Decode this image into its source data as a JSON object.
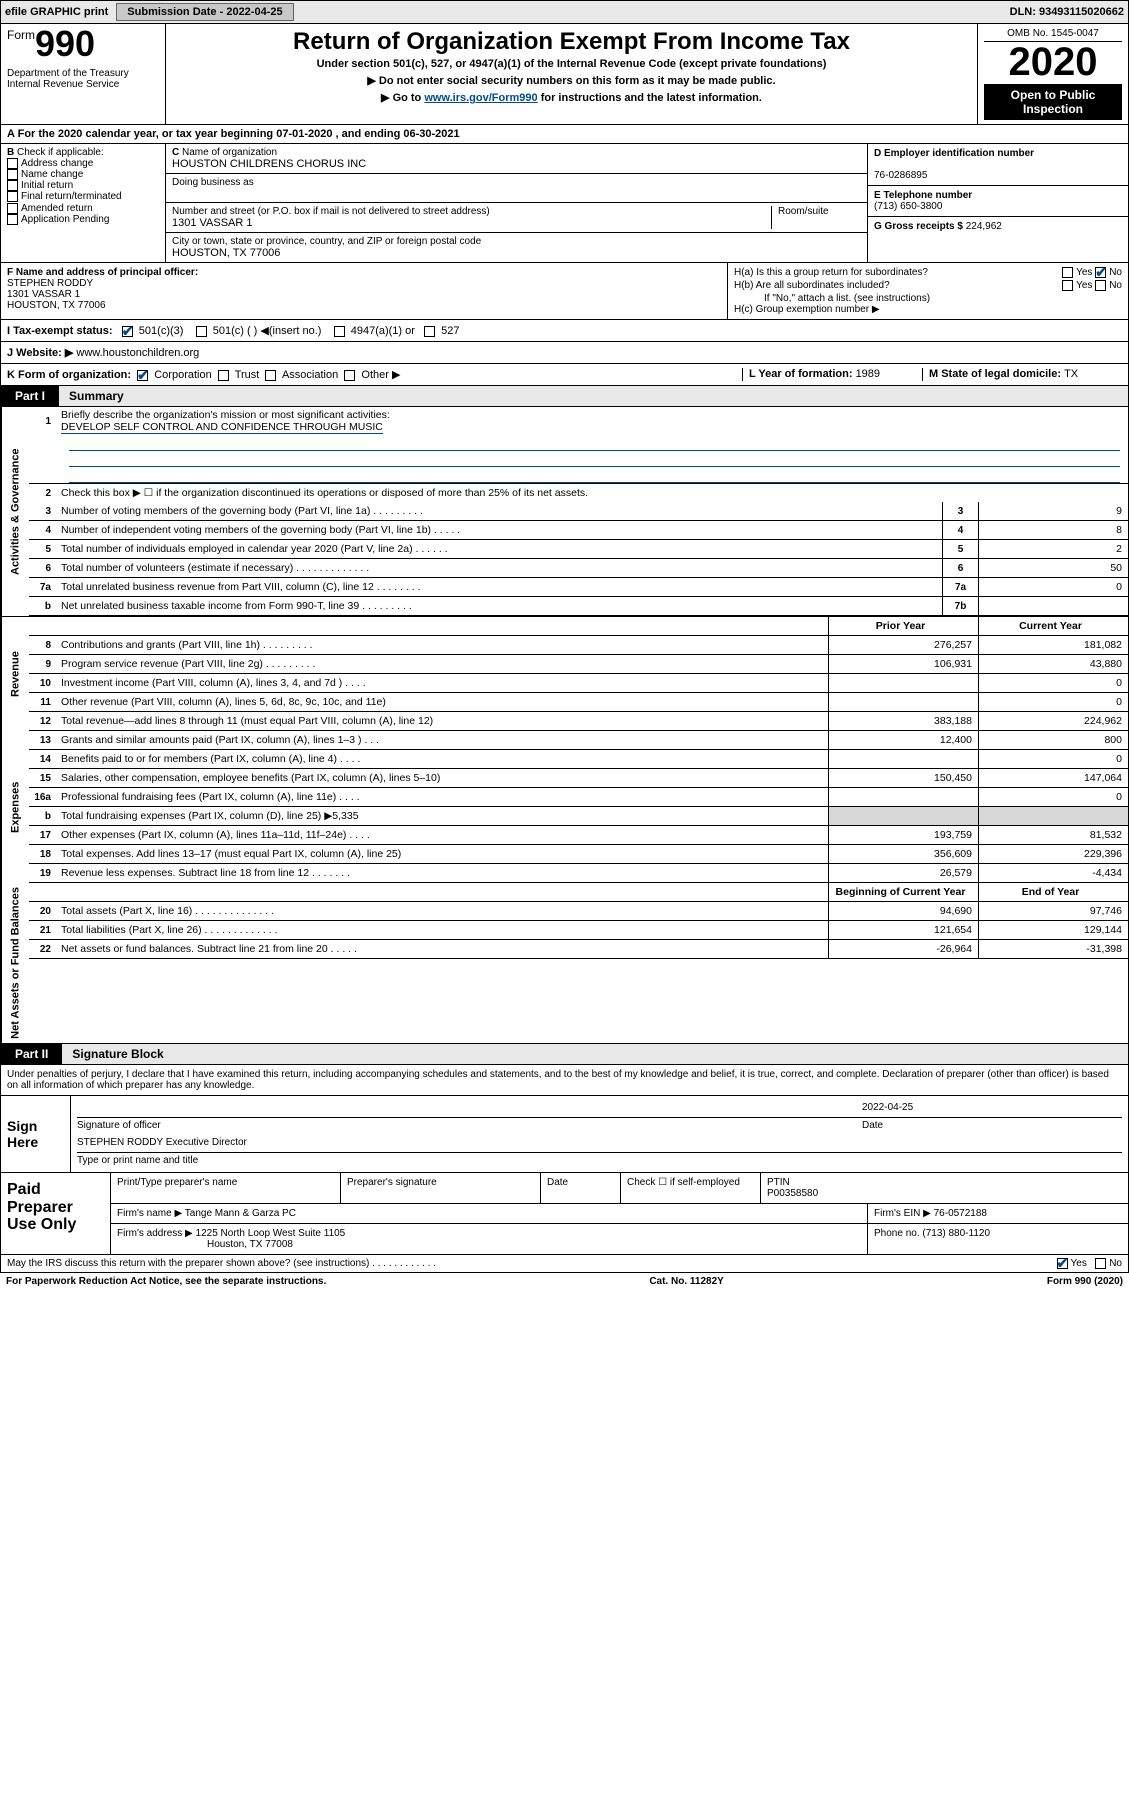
{
  "topbar": {
    "efile": "efile GRAPHIC print",
    "subdate_label": "Submission Date - ",
    "subdate": "2022-04-25",
    "dln_label": "DLN: ",
    "dln": "93493115020662"
  },
  "header": {
    "form_word": "Form",
    "form_num": "990",
    "dept": "Department of the Treasury\nInternal Revenue Service",
    "title": "Return of Organization Exempt From Income Tax",
    "subtitle": "Under section 501(c), 527, or 4947(a)(1) of the Internal Revenue Code (except private foundations)",
    "line1": "▶ Do not enter social security numbers on this form as it may be made public.",
    "line2_a": "▶ Go to ",
    "line2_link": "www.irs.gov/Form990",
    "line2_b": " for instructions and the latest information.",
    "omb": "OMB No. 1545-0047",
    "year": "2020",
    "inspect": "Open to Public\nInspection"
  },
  "period": "For the 2020 calendar year, or tax year beginning 07-01-2020    , and ending 06-30-2021",
  "boxB": {
    "label": "Check if applicable:",
    "items": [
      "Address change",
      "Name change",
      "Initial return",
      "Final return/terminated",
      "Amended return",
      "Application Pending"
    ]
  },
  "boxC": {
    "name_label": "Name of organization",
    "name": "HOUSTON CHILDRENS CHORUS INC",
    "dba_label": "Doing business as",
    "addr_label": "Number and street (or P.O. box if mail is not delivered to street address)",
    "room_label": "Room/suite",
    "addr": "1301 VASSAR 1",
    "city_label": "City or town, state or province, country, and ZIP or foreign postal code",
    "city": "HOUSTON, TX  77006"
  },
  "boxDE": {
    "d_label": "D Employer identification number",
    "d_val": "76-0286895",
    "e_label": "E Telephone number",
    "e_val": "(713) 650-3800",
    "g_label": "G Gross receipts $ ",
    "g_val": "224,962"
  },
  "boxF": {
    "label": "F  Name and address of principal officer:",
    "name": "STEPHEN RODDY",
    "addr1": "1301 VASSAR 1",
    "addr2": "HOUSTON, TX  77006"
  },
  "boxH": {
    "a": "H(a)  Is this a group return for subordinates?",
    "b": "H(b)  Are all subordinates included?",
    "bnote": "If \"No,\" attach a list. (see instructions)",
    "c": "H(c)  Group exemption number ▶",
    "yes": "Yes",
    "no": "No"
  },
  "row_i": {
    "label": "I   Tax-exempt status:",
    "opts": [
      "501(c)(3)",
      "501(c) (  ) ◀(insert no.)",
      "4947(a)(1) or",
      "527"
    ]
  },
  "row_j": {
    "label": "J   Website: ▶  ",
    "val": "www.houstonchildren.org"
  },
  "row_k": {
    "label": "K Form of organization:",
    "opts": [
      "Corporation",
      "Trust",
      "Association",
      "Other ▶"
    ],
    "l_label": "L Year of formation: ",
    "l_val": "1989",
    "m_label": "M State of legal domicile: ",
    "m_val": "TX"
  },
  "parts": {
    "p1": "Part I",
    "p1_title": "Summary",
    "p2": "Part II",
    "p2_title": "Signature Block"
  },
  "sideLabels": {
    "gov": "Activities & Governance",
    "rev": "Revenue",
    "exp": "Expenses",
    "net": "Net Assets or Fund Balances"
  },
  "summary": {
    "l1": "Briefly describe the organization's mission or most significant activities:",
    "l1_val": "DEVELOP SELF CONTROL AND CONFIDENCE THROUGH MUSIC",
    "l2": "Check this box ▶ ☐  if the organization discontinued its operations or disposed of more than 25% of its net assets.",
    "rows_gov": [
      {
        "n": "3",
        "d": "Number of voting members of the governing body (Part VI, line 1a)  .   .   .   .   .   .   .   .   .",
        "c": "3",
        "v": "9"
      },
      {
        "n": "4",
        "d": "Number of independent voting members of the governing body (Part VI, line 1b)  .   .   .   .   .",
        "c": "4",
        "v": "8"
      },
      {
        "n": "5",
        "d": "Total number of individuals employed in calendar year 2020 (Part V, line 2a)  .   .   .   .   .   .",
        "c": "5",
        "v": "2"
      },
      {
        "n": "6",
        "d": "Total number of volunteers (estimate if necessary)  .   .   .   .   .   .   .   .   .   .   .   .   .",
        "c": "6",
        "v": "50"
      },
      {
        "n": "7a",
        "d": "Total unrelated business revenue from Part VIII, column (C), line 12  .   .   .   .   .   .   .   .",
        "c": "7a",
        "v": "0"
      },
      {
        "n": "b",
        "d": "Net unrelated business taxable income from Form 990-T, line 39  .   .   .   .   .   .   .   .   .",
        "c": "7b",
        "v": ""
      }
    ],
    "colhead_prior": "Prior Year",
    "colhead_curr": "Current Year",
    "rows_rev": [
      {
        "n": "8",
        "d": "Contributions and grants (Part VIII, line 1h)  .   .   .   .   .   .   .   .   .",
        "p": "276,257",
        "c": "181,082"
      },
      {
        "n": "9",
        "d": "Program service revenue (Part VIII, line 2g)  .   .   .   .   .   .   .   .   .",
        "p": "106,931",
        "c": "43,880"
      },
      {
        "n": "10",
        "d": "Investment income (Part VIII, column (A), lines 3, 4, and 7d )  .   .   .   .",
        "p": "",
        "c": "0"
      },
      {
        "n": "11",
        "d": "Other revenue (Part VIII, column (A), lines 5, 6d, 8c, 9c, 10c, and 11e)",
        "p": "",
        "c": "0"
      },
      {
        "n": "12",
        "d": "Total revenue—add lines 8 through 11 (must equal Part VIII, column (A), line 12)",
        "p": "383,188",
        "c": "224,962"
      }
    ],
    "rows_exp": [
      {
        "n": "13",
        "d": "Grants and similar amounts paid (Part IX, column (A), lines 1–3 )   .   .   .",
        "p": "12,400",
        "c": "800"
      },
      {
        "n": "14",
        "d": "Benefits paid to or for members (Part IX, column (A), line 4)  .   .   .   .",
        "p": "",
        "c": "0"
      },
      {
        "n": "15",
        "d": "Salaries, other compensation, employee benefits (Part IX, column (A), lines 5–10)",
        "p": "150,450",
        "c": "147,064"
      },
      {
        "n": "16a",
        "d": "Professional fundraising fees (Part IX, column (A), line 11e)  .   .   .   .",
        "p": "",
        "c": "0"
      },
      {
        "n": "b",
        "d": "Total fundraising expenses (Part IX, column (D), line 25)  ▶5,335",
        "p": null,
        "c": null
      },
      {
        "n": "17",
        "d": "Other expenses (Part IX, column (A), lines 11a–11d, 11f–24e)  .   .   .   .",
        "p": "193,759",
        "c": "81,532"
      },
      {
        "n": "18",
        "d": "Total expenses. Add lines 13–17 (must equal Part IX, column (A), line 25)",
        "p": "356,609",
        "c": "229,396"
      },
      {
        "n": "19",
        "d": "Revenue less expenses. Subtract line 18 from line 12  .   .   .   .   .   .   .",
        "p": "26,579",
        "c": "-4,434"
      }
    ],
    "colhead_beg": "Beginning of Current Year",
    "colhead_end": "End of Year",
    "rows_net": [
      {
        "n": "20",
        "d": "Total assets (Part X, line 16)   .   .   .   .   .   .   .   .   .   .   .   .   .   .",
        "p": "94,690",
        "c": "97,746"
      },
      {
        "n": "21",
        "d": "Total liabilities (Part X, line 26)  .   .   .   .   .   .   .   .   .   .   .   .   .",
        "p": "121,654",
        "c": "129,144"
      },
      {
        "n": "22",
        "d": "Net assets or fund balances. Subtract line 21 from line 20  .   .   .   .   .",
        "p": "-26,964",
        "c": "-31,398"
      }
    ]
  },
  "sig": {
    "decl": "Under penalties of perjury, I declare that I have examined this return, including accompanying schedules and statements, and to the best of my knowledge and belief, it is true, correct, and complete. Declaration of preparer (other than officer) is based on all information of which preparer has any knowledge.",
    "sign_here": "Sign Here",
    "sig_officer": "Signature of officer",
    "date_label": "Date",
    "sig_date": "2022-04-25",
    "name_title": "STEPHEN RODDY Executive Director",
    "type_label": "Type or print name and title",
    "paid": "Paid Preparer Use Only",
    "pt_name": "Print/Type preparer's name",
    "pt_sig": "Preparer's signature",
    "check_self": "Check ☐  if self-employed",
    "ptin_label": "PTIN",
    "ptin": "P00358580",
    "firm_name_label": "Firm's name    ▶ ",
    "firm_name": "Tange Mann & Garza PC",
    "firm_ein_label": "Firm's EIN ▶ ",
    "firm_ein": "76-0572188",
    "firm_addr_label": "Firm's address ▶ ",
    "firm_addr1": "1225 North Loop West Suite 1105",
    "firm_addr2": "Houston, TX  77008",
    "phone_label": "Phone no. ",
    "phone": "(713) 880-1120",
    "discuss": "May the IRS discuss this return with the preparer shown above? (see instructions)   .   .   .   .   .   .   .   .   .   .   .   .",
    "yes": "Yes",
    "no": "No"
  },
  "footer": {
    "pra": "For Paperwork Reduction Act Notice, see the separate instructions.",
    "cat": "Cat. No. 11282Y",
    "form": "Form 990 (2020)"
  },
  "colors": {
    "link": "#004b8d",
    "black": "#000000",
    "shade": "#d8d8d8"
  }
}
